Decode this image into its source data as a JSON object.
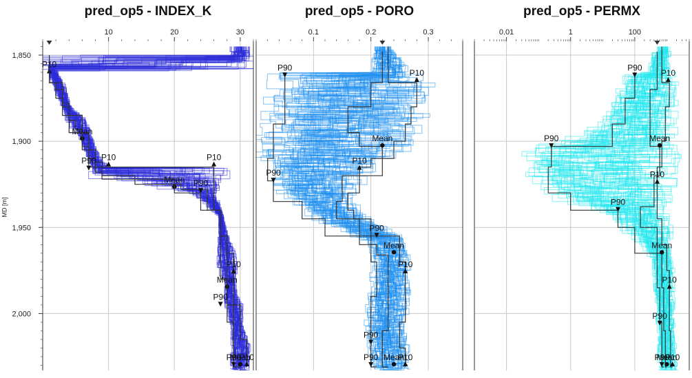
{
  "tracks": [
    {
      "title": "pred_op5 - INDEX_K"
    },
    {
      "title": "pred_op5 - PORO"
    },
    {
      "title": "pred_op5 - PERMX"
    }
  ],
  "y_axis": {
    "label": "MD [m]",
    "ticks": [
      "1,850",
      "1,900",
      "1,950",
      "2,000"
    ]
  },
  "chart_data": [
    {
      "type": "line",
      "title": "pred_op5 - INDEX_K",
      "ylabel": "MD [m]",
      "ylim": [
        1842,
        2033
      ],
      "y_inverted": true,
      "xlim": [
        0,
        32
      ],
      "x_ticks": [
        10,
        20,
        30
      ],
      "ensemble_color": "#2a2ad8",
      "series": [
        {
          "name": "P10",
          "points": [
            [
              1,
              1850
            ],
            [
              2,
              1866
            ],
            [
              3,
              1870
            ],
            [
              4,
              1880
            ],
            [
              6,
              1885
            ],
            [
              7,
              1895
            ],
            [
              8,
              1905
            ],
            [
              9,
              1912
            ],
            [
              10,
              1915
            ],
            [
              26,
              1915
            ],
            [
              26,
              1930
            ],
            [
              27,
              1940
            ],
            [
              28,
              1955
            ],
            [
              29,
              1965
            ],
            [
              29,
              1975
            ],
            [
              29,
              1985
            ],
            [
              30,
              1995
            ],
            [
              30,
              2005
            ],
            [
              31,
              2015
            ],
            [
              31,
              2031
            ]
          ],
          "labels": [
            {
              "x": 1,
              "y": 1857,
              "text": "P10"
            },
            {
              "x": 10,
              "y": 1911,
              "text": "P10"
            },
            {
              "x": 26,
              "y": 1911,
              "text": "P10"
            },
            {
              "x": 29,
              "y": 1973,
              "text": "P10"
            },
            {
              "x": 31,
              "y": 2027,
              "text": "P10"
            }
          ]
        },
        {
          "name": "Mean",
          "points": [
            [
              1,
              1852
            ],
            [
              3,
              1866
            ],
            [
              4,
              1878
            ],
            [
              5,
              1888
            ],
            [
              6,
              1893
            ],
            [
              7,
              1903
            ],
            [
              8,
              1910
            ],
            [
              9,
              1915
            ],
            [
              14,
              1920
            ],
            [
              21,
              1925
            ],
            [
              25,
              1928
            ],
            [
              27,
              1940
            ],
            [
              28,
              1955
            ],
            [
              28,
              1970
            ],
            [
              28,
              1983
            ],
            [
              29,
              1995
            ],
            [
              29,
              2010
            ],
            [
              30,
              2031
            ]
          ],
          "labels": [
            {
              "x": 6,
              "y": 1896,
              "text": "Mean"
            },
            {
              "x": 20,
              "y": 1924,
              "text": "Mean"
            },
            {
              "x": 28,
              "y": 1982,
              "text": "Mean"
            },
            {
              "x": 30,
              "y": 2027,
              "text": "Mean"
            }
          ]
        },
        {
          "name": "P90",
          "points": [
            [
              1,
              1855
            ],
            [
              2,
              1866
            ],
            [
              3,
              1875
            ],
            [
              4,
              1885
            ],
            [
              6,
              1895
            ],
            [
              7,
              1905
            ],
            [
              8,
              1915
            ],
            [
              9,
              1918
            ],
            [
              20,
              1922
            ],
            [
              24,
              1930
            ],
            [
              27,
              1940
            ],
            [
              27,
              1955
            ],
            [
              27,
              1970
            ],
            [
              28,
              1980
            ],
            [
              28,
              1992
            ],
            [
              29,
              2005
            ],
            [
              29,
              2020
            ],
            [
              29,
              2031
            ]
          ],
          "labels": [
            {
              "x": 7,
              "y": 1913,
              "text": "P90"
            },
            {
              "x": 24,
              "y": 1926,
              "text": "P90"
            },
            {
              "x": 27,
              "y": 1992,
              "text": "P90"
            },
            {
              "x": 29,
              "y": 2027,
              "text": "P90"
            }
          ]
        }
      ]
    },
    {
      "type": "line",
      "title": "pred_op5 - PORO",
      "ylabel": "MD [m]",
      "ylim": [
        1842,
        2033
      ],
      "y_inverted": true,
      "xlim": [
        0,
        0.36
      ],
      "x_ticks": [
        0.1,
        0.2,
        0.3
      ],
      "ensemble_color": "#1f8ff0",
      "series": [
        {
          "name": "P10",
          "points": [
            [
              0.23,
              1845
            ],
            [
              0.28,
              1866
            ],
            [
              0.27,
              1880
            ],
            [
              0.26,
              1890
            ],
            [
              0.24,
              1900
            ],
            [
              0.2,
              1910
            ],
            [
              0.18,
              1915
            ],
            [
              0.16,
              1930
            ],
            [
              0.17,
              1940
            ],
            [
              0.2,
              1945
            ],
            [
              0.25,
              1955
            ],
            [
              0.26,
              1970
            ],
            [
              0.26,
              1990
            ],
            [
              0.25,
              2005
            ],
            [
              0.26,
              2020
            ],
            [
              0.26,
              2031
            ]
          ],
          "labels": [
            {
              "x": 0.28,
              "y": 1862,
              "text": "P10"
            },
            {
              "x": 0.18,
              "y": 1913,
              "text": "P10"
            },
            {
              "x": 0.26,
              "y": 1973,
              "text": "P10"
            },
            {
              "x": 0.26,
              "y": 2027,
              "text": "P10"
            }
          ]
        },
        {
          "name": "Mean",
          "points": [
            [
              0.22,
              1848
            ],
            [
              0.2,
              1866
            ],
            [
              0.16,
              1880
            ],
            [
              0.18,
              1895
            ],
            [
              0.22,
              1903
            ],
            [
              0.15,
              1920
            ],
            [
              0.14,
              1935
            ],
            [
              0.18,
              1945
            ],
            [
              0.21,
              1960
            ],
            [
              0.23,
              1966
            ],
            [
              0.23,
              1990
            ],
            [
              0.22,
              2010
            ],
            [
              0.23,
              2031
            ]
          ],
          "labels": [
            {
              "x": 0.22,
              "y": 1900,
              "text": "Mean"
            },
            {
              "x": 0.24,
              "y": 1962,
              "text": "Mean"
            },
            {
              "x": 0.24,
              "y": 2027,
              "text": "Mean"
            }
          ]
        },
        {
          "name": "P90",
          "points": [
            [
              0.05,
              1860
            ],
            [
              0.05,
              1870
            ],
            [
              0.03,
              1890
            ],
            [
              0.03,
              1900
            ],
            [
              0.02,
              1910
            ],
            [
              0.03,
              1923
            ],
            [
              0.08,
              1935
            ],
            [
              0.12,
              1945
            ],
            [
              0.2,
              1955
            ],
            [
              0.21,
              1970
            ],
            [
              0.2,
              1990
            ],
            [
              0.2,
              2010
            ],
            [
              0.21,
              2031
            ]
          ],
          "labels": [
            {
              "x": 0.05,
              "y": 1859,
              "text": "P90"
            },
            {
              "x": 0.03,
              "y": 1920,
              "text": "P90"
            },
            {
              "x": 0.21,
              "y": 1952,
              "text": "P90"
            },
            {
              "x": 0.2,
              "y": 2014,
              "text": "P90"
            },
            {
              "x": 0.2,
              "y": 2027,
              "text": "P90"
            }
          ]
        }
      ]
    },
    {
      "type": "line",
      "title": "pred_op5 - PERMX",
      "ylabel": "MD [m]",
      "ylim": [
        1842,
        2033
      ],
      "y_inverted": true,
      "xlim": [
        0.001,
        5000
      ],
      "x_scale": "log",
      "x_ticks": [
        0.01,
        1,
        100
      ],
      "x_tick_labels": [
        "0.01",
        "1",
        "100"
      ],
      "ensemble_color": "#22e8ee",
      "series": [
        {
          "name": "P10",
          "points": [
            [
              700,
              1845
            ],
            [
              1200,
              1866
            ],
            [
              900,
              1880
            ],
            [
              700,
              1900
            ],
            [
              500,
              1915
            ],
            [
              500,
              1930
            ],
            [
              700,
              1945
            ],
            [
              1000,
              1960
            ],
            [
              1200,
              1975
            ],
            [
              1200,
              1990
            ],
            [
              1300,
              2010
            ],
            [
              1500,
              2031
            ]
          ],
          "labels": [
            {
              "x": 1100,
              "y": 1862,
              "text": "P10"
            },
            {
              "x": 500,
              "y": 1921,
              "text": "P10"
            },
            {
              "x": 1200,
              "y": 1982,
              "text": "P10"
            },
            {
              "x": 1500,
              "y": 2027,
              "text": "P10"
            }
          ]
        },
        {
          "name": "Mean",
          "points": [
            [
              500,
              1848
            ],
            [
              300,
              1870
            ],
            [
              300,
              1890
            ],
            [
              600,
              1903
            ],
            [
              400,
              1920
            ],
            [
              150,
              1938
            ],
            [
              500,
              1950
            ],
            [
              700,
              1965
            ],
            [
              800,
              1985
            ],
            [
              900,
              2010
            ],
            [
              1000,
              2031
            ]
          ],
          "labels": [
            {
              "x": 600,
              "y": 1900,
              "text": "Mean"
            },
            {
              "x": 700,
              "y": 1962,
              "text": "Mean"
            },
            {
              "x": 1000,
              "y": 2027,
              "text": "Mean"
            }
          ]
        },
        {
          "name": "P90",
          "points": [
            [
              100,
              1860
            ],
            [
              50,
              1875
            ],
            [
              20,
              1890
            ],
            [
              0.25,
              1903
            ],
            [
              0.2,
              1915
            ],
            [
              1,
              1930
            ],
            [
              30,
              1940
            ],
            [
              100,
              1950
            ],
            [
              500,
              1965
            ],
            [
              600,
              1985
            ],
            [
              700,
              2005
            ],
            [
              800,
              2031
            ]
          ],
          "labels": [
            {
              "x": 100,
              "y": 1859,
              "text": "P90"
            },
            {
              "x": 0.25,
              "y": 1900,
              "text": "P90"
            },
            {
              "x": 30,
              "y": 1937,
              "text": "P90"
            },
            {
              "x": 600,
              "y": 2003,
              "text": "P90"
            },
            {
              "x": 700,
              "y": 2027,
              "text": "P90"
            }
          ]
        }
      ]
    }
  ]
}
